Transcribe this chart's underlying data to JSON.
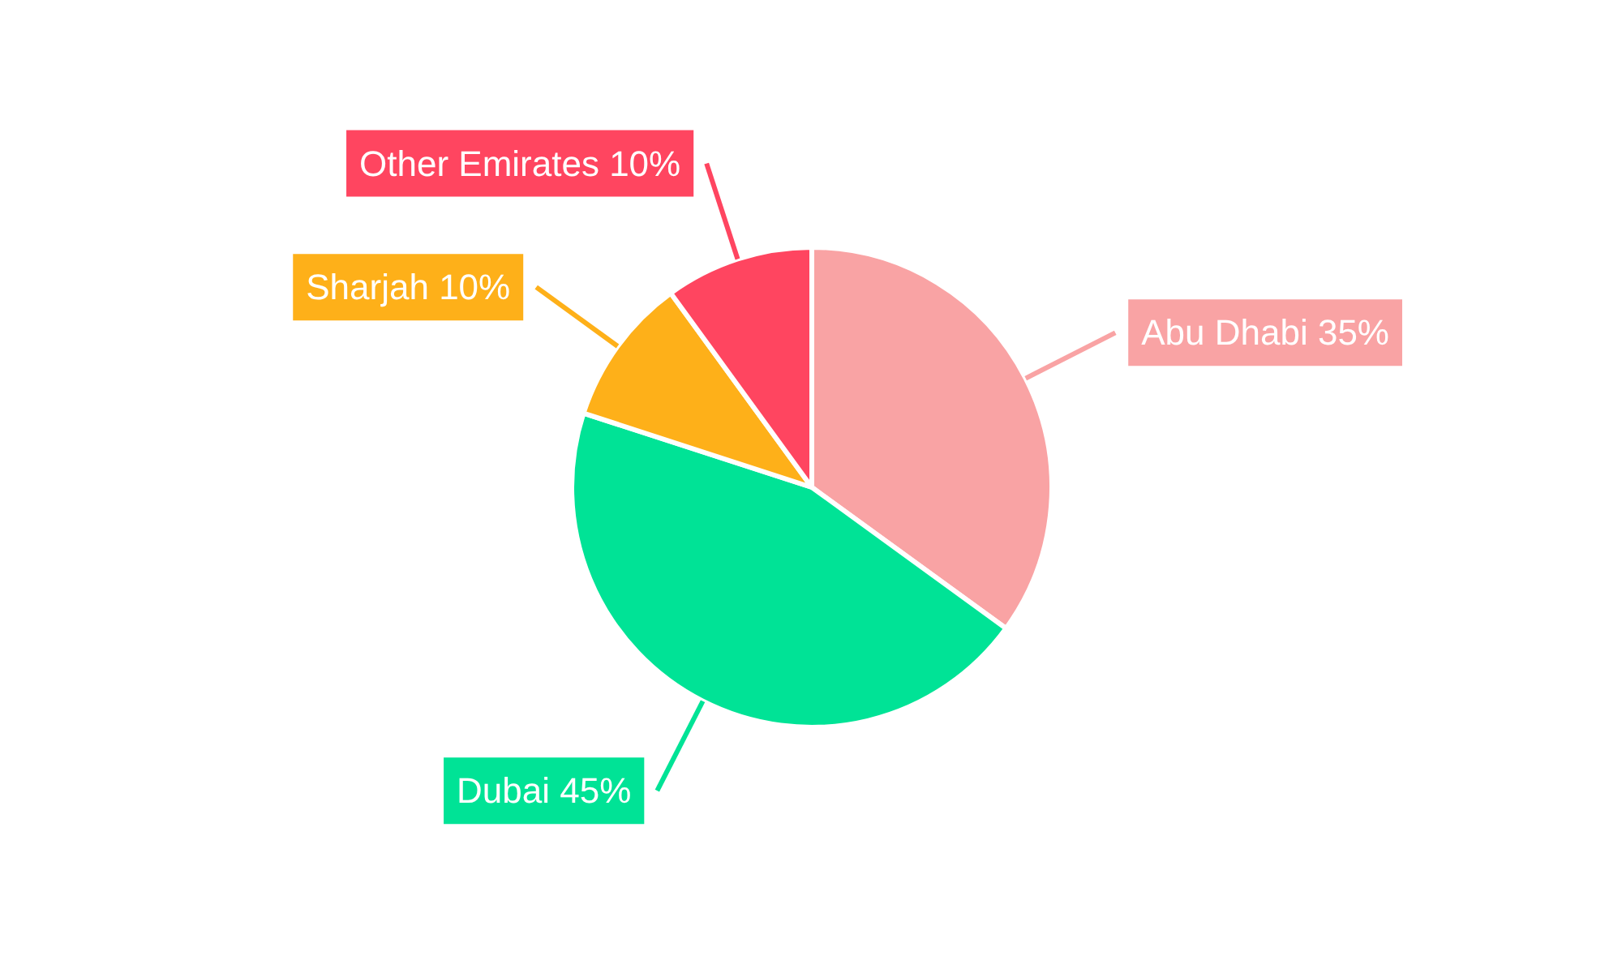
{
  "chart_data": {
    "type": "pie",
    "categories": [
      "Abu Dhabi",
      "Dubai",
      "Sharjah",
      "Other Emirates"
    ],
    "values": [
      35,
      45,
      10,
      10
    ],
    "value_labels": [
      "35%",
      "45%",
      "10%",
      "10%"
    ],
    "colors": [
      "#f9a3a4",
      "#00e396",
      "#feb019",
      "#ff4560"
    ]
  }
}
